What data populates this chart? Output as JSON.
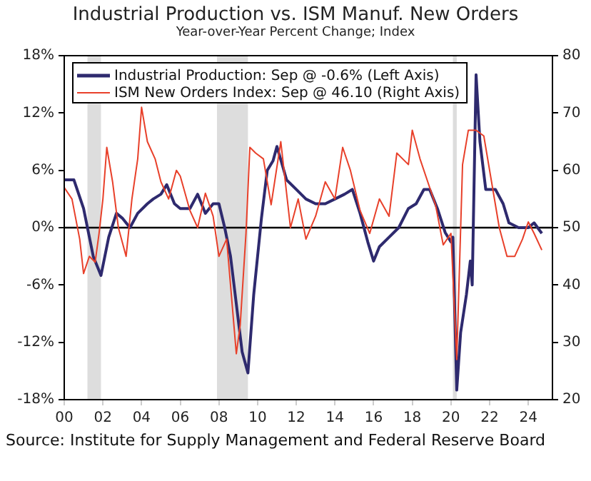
{
  "chart_data": {
    "type": "line",
    "title": "Industrial Production vs. ISM Manuf. New Orders",
    "subtitle": "Year-over-Year Percent Change; Index",
    "annotations": [
      "Source: Institute for Supply Management and Federal Reserve Board"
    ],
    "legend": "top left",
    "grid": false,
    "marker": "none",
    "line_style": "solid",
    "xlim": [
      2000,
      2025.25
    ],
    "xticks": [
      {
        "value": 2000,
        "label": "00"
      },
      {
        "value": 2002,
        "label": "02"
      },
      {
        "value": 2004,
        "label": "04"
      },
      {
        "value": 2006,
        "label": "06"
      },
      {
        "value": 2008,
        "label": "08"
      },
      {
        "value": 2010,
        "label": "10"
      },
      {
        "value": 2012,
        "label": "12"
      },
      {
        "value": 2014,
        "label": "14"
      },
      {
        "value": 2016,
        "label": "16"
      },
      {
        "value": 2018,
        "label": "18"
      },
      {
        "value": 2020,
        "label": "20"
      },
      {
        "value": 2022,
        "label": "22"
      },
      {
        "value": 2024,
        "label": "24"
      }
    ],
    "ylim": [
      -18,
      18
    ],
    "yticks": [
      {
        "value": -18,
        "label": "-18%"
      },
      {
        "value": -12,
        "label": "-12%"
      },
      {
        "value": -6,
        "label": "-6%"
      },
      {
        "value": 0,
        "label": "0%"
      },
      {
        "value": 6,
        "label": "6%"
      },
      {
        "value": 12,
        "label": "12%"
      },
      {
        "value": 18,
        "label": "18%"
      }
    ],
    "y2lim": [
      20,
      80
    ],
    "y2ticks": [
      20,
      30,
      40,
      50,
      60,
      70,
      80
    ],
    "ref_lines": [
      {
        "axis": "y",
        "value": 0,
        "label": null,
        "color": "#000000"
      }
    ],
    "bands": [
      {
        "axis": "x",
        "from": 2001.2,
        "to": 2001.9,
        "label": null,
        "color": "#dddddd"
      },
      {
        "axis": "x",
        "from": 2007.9,
        "to": 2009.5,
        "label": null,
        "color": "#dddddd"
      },
      {
        "axis": "x",
        "from": 2020.1,
        "to": 2020.3,
        "label": null,
        "color": "#dddddd"
      }
    ],
    "series": [
      {
        "name": "ISM New Orders Index: Sep @ 46.10 (Right Axis)",
        "color": "#e8402a",
        "axis": "y2",
        "x": [
          2000,
          2000.4,
          2000.8,
          2001,
          2001.3,
          2001.6,
          2001.8,
          2002,
          2002.2,
          2002.5,
          2002.8,
          2003.2,
          2003.5,
          2003.8,
          2004,
          2004.3,
          2004.7,
          2005,
          2005.4,
          2005.8,
          2006,
          2006.5,
          2006.9,
          2007.3,
          2007.7,
          2008,
          2008.4,
          2008.9,
          2009.1,
          2009.4,
          2009.6,
          2009.9,
          2010.3,
          2010.7,
          2011.2,
          2011.7,
          2012.1,
          2012.5,
          2013,
          2013.5,
          2014,
          2014.4,
          2014.8,
          2015.3,
          2015.8,
          2016.3,
          2016.8,
          2017.2,
          2017.8,
          2018,
          2018.4,
          2018.8,
          2019.2,
          2019.6,
          2020,
          2020.3,
          2020.6,
          2020.9,
          2021.3,
          2021.7,
          2022.1,
          2022.5,
          2022.9,
          2023.3,
          2023.7,
          2024,
          2024.3,
          2024.7
        ],
        "values": [
          57,
          55,
          48,
          42,
          45,
          44,
          49,
          55,
          64,
          58,
          50,
          45,
          55,
          62,
          71,
          65,
          62,
          58,
          55,
          60,
          59,
          53,
          50,
          56,
          52,
          45,
          48,
          28,
          33,
          49,
          64,
          63,
          62,
          54,
          65,
          50,
          55,
          48,
          52,
          58,
          55,
          64,
          60,
          53,
          49,
          55,
          52,
          63,
          61,
          67,
          62,
          58,
          54,
          47,
          49,
          27,
          61,
          67,
          67,
          66,
          58,
          50,
          45,
          45,
          48,
          51,
          49,
          46.1
        ]
      },
      {
        "name": "Industrial Production: Sep @ -0.6% (Left Axis)",
        "color": "#2e2a6e",
        "axis": "y",
        "x": [
          2000,
          2000.5,
          2001,
          2001.5,
          2001.8,
          2001.9,
          2002.3,
          2002.7,
          2003,
          2003.4,
          2003.8,
          2004.3,
          2004.6,
          2005,
          2005.3,
          2005.7,
          2006,
          2006.5,
          2006.9,
          2007.3,
          2007.7,
          2008,
          2008.3,
          2008.6,
          2008.9,
          2009.2,
          2009.5,
          2009.8,
          2010,
          2010.2,
          2010.5,
          2010.8,
          2011,
          2011.5,
          2012,
          2012.5,
          2013,
          2013.5,
          2014,
          2014.5,
          2014.9,
          2015.3,
          2015.7,
          2016,
          2016.3,
          2016.8,
          2017.3,
          2017.8,
          2018.2,
          2018.6,
          2018.9,
          2019.3,
          2019.7,
          2020,
          2020.1,
          2020.3,
          2020.5,
          2020.8,
          2021,
          2021.1,
          2021.3,
          2021.5,
          2021.8,
          2022.3,
          2022.7,
          2023,
          2023.5,
          2024,
          2024.3,
          2024.7
        ],
        "values": [
          5,
          5,
          2,
          -3,
          -4.5,
          -5,
          -1,
          1.5,
          1,
          0,
          1.5,
          2.5,
          3,
          3.5,
          4.5,
          2.5,
          2,
          2,
          3.5,
          1.5,
          2.5,
          2.5,
          0,
          -3,
          -8,
          -13,
          -15.2,
          -7,
          -3,
          1,
          6,
          7,
          8.5,
          5,
          4,
          3,
          2.5,
          2.5,
          3,
          3.5,
          4,
          1.5,
          -1.5,
          -3.5,
          -2,
          -1,
          0,
          2,
          2.5,
          4,
          4,
          2,
          -0.5,
          -1.5,
          -1,
          -17,
          -11,
          -7,
          -3.5,
          -6,
          16,
          9,
          4,
          4,
          2.5,
          0.5,
          0,
          0,
          0.5,
          -0.6
        ]
      }
    ]
  }
}
